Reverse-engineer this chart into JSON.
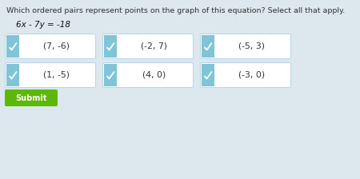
{
  "title": "Which ordered pairs represent points on the graph of this equation? Select all that apply.",
  "equation": "6x - 7y = -18",
  "bg_color": "#dde8ee",
  "options": [
    {
      "label": "(7, -6)",
      "row": 0,
      "col": 0,
      "checked": true
    },
    {
      "label": "(-2, 7)",
      "row": 0,
      "col": 1,
      "checked": true
    },
    {
      "label": "(-5, 3)",
      "row": 0,
      "col": 2,
      "checked": true
    },
    {
      "label": "(1, -5)",
      "row": 1,
      "col": 0,
      "checked": true
    },
    {
      "label": "(4, 0)",
      "row": 1,
      "col": 1,
      "checked": true
    },
    {
      "label": "(-3, 0)",
      "row": 1,
      "col": 2,
      "checked": true
    }
  ],
  "submit_label": "Submit",
  "submit_color": "#5cb800",
  "submit_text_color": "#ffffff",
  "box_bg": "#ffffff",
  "box_border": "#b8d8e8",
  "bar_color": "#80c4d8",
  "title_fontsize": 6.8,
  "eq_fontsize": 7.5,
  "option_fontsize": 7.8,
  "submit_fontsize": 7.0
}
